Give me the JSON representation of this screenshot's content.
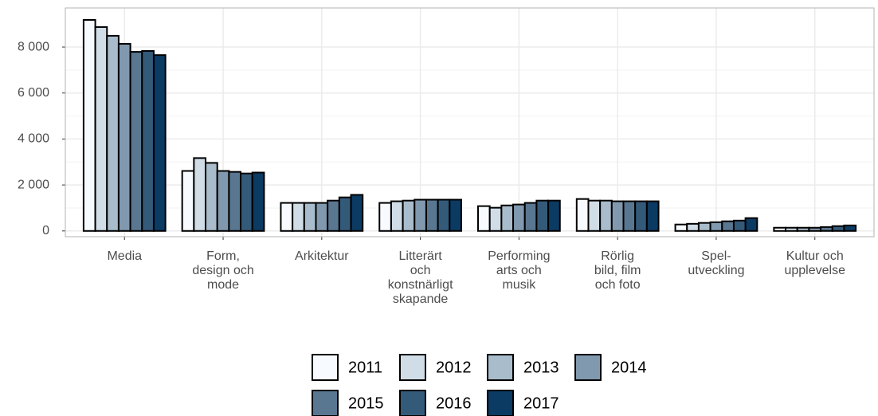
{
  "chart_data": {
    "type": "bar",
    "categories": [
      "Media",
      "Form,\ndesign och\nmode",
      "Arkitektur",
      "Litterärt\noch\nkonstnärligt\nskapande",
      "Performing\narts och\nmusik",
      "Rörlig\nbild, film\noch foto",
      "Spel-\nutveckling",
      "Kultur och\nupplevelse"
    ],
    "series": [
      {
        "name": "2011",
        "color": "#f7fbff",
        "values": [
          9180,
          2610,
          1220,
          1220,
          1080,
          1390,
          280,
          140
        ]
      },
      {
        "name": "2012",
        "color": "#d0dde6",
        "values": [
          8870,
          3170,
          1220,
          1290,
          1010,
          1320,
          310,
          140
        ]
      },
      {
        "name": "2013",
        "color": "#a9bccb",
        "values": [
          8490,
          2960,
          1220,
          1320,
          1110,
          1320,
          350,
          140
        ]
      },
      {
        "name": "2014",
        "color": "#8199ae",
        "values": [
          8140,
          2610,
          1220,
          1360,
          1150,
          1290,
          380,
          140
        ]
      },
      {
        "name": "2015",
        "color": "#5a7791",
        "values": [
          7790,
          2570,
          1320,
          1360,
          1220,
          1290,
          420,
          170
        ]
      },
      {
        "name": "2016",
        "color": "#345a7a",
        "values": [
          7830,
          2500,
          1460,
          1360,
          1320,
          1290,
          450,
          210
        ]
      },
      {
        "name": "2017",
        "color": "#0b3a63",
        "values": [
          7650,
          2540,
          1570,
          1360,
          1320,
          1290,
          560,
          240
        ]
      }
    ],
    "ylim": [
      -250,
      9700
    ],
    "yticks": [
      0,
      {
        "value": 2000,
        "label": "2 000"
      },
      {
        "value": 4000,
        "label": "4 000"
      },
      {
        "value": 6000,
        "label": "6 000"
      },
      {
        "value": 8000,
        "label": "8 000"
      }
    ],
    "grid": true,
    "legend": "bottom"
  }
}
